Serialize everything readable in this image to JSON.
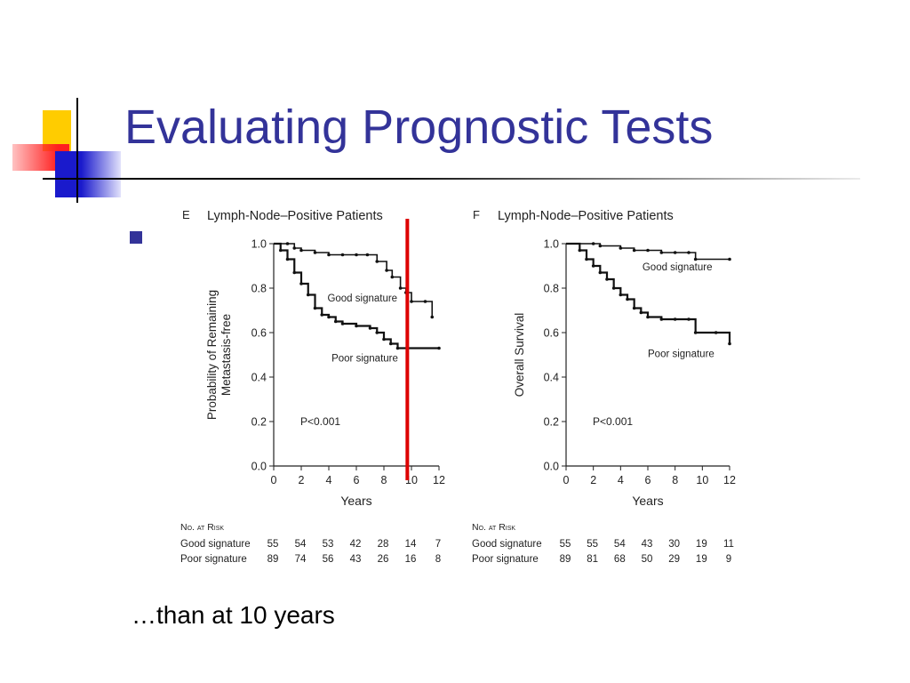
{
  "slide": {
    "title": "Evaluating Prognostic Tests",
    "bottom_text": "…than at 10 years"
  },
  "colors": {
    "title": "#333399",
    "bullet": "#333399",
    "marker_line": "#dd0000"
  },
  "chart_data": [
    {
      "type": "line",
      "panel_letter": "E",
      "title": "Lymph-Node–Positive Patients",
      "xlabel": "Years",
      "ylabel": "Probability of Remaining Metastasis-free",
      "xlim": [
        0,
        12
      ],
      "ylim": [
        0,
        1
      ],
      "xticks": [
        "0",
        "2",
        "4",
        "6",
        "8",
        "10",
        "12"
      ],
      "yticks": [
        "0.0",
        "0.2",
        "0.4",
        "0.6",
        "0.8",
        "1.0"
      ],
      "annotation": "P<0.001",
      "reference_line_x": 9.7,
      "series": [
        {
          "name": "Good signature",
          "x": [
            0,
            1,
            1.5,
            2,
            3,
            4,
            5,
            6,
            6.8,
            7.5,
            8.2,
            8.6,
            9.2,
            9.6,
            10,
            11,
            11.5
          ],
          "y": [
            1.0,
            1.0,
            0.98,
            0.97,
            0.96,
            0.95,
            0.95,
            0.95,
            0.95,
            0.92,
            0.88,
            0.85,
            0.8,
            0.78,
            0.74,
            0.74,
            0.67
          ]
        },
        {
          "name": "Poor signature",
          "x": [
            0,
            0.5,
            1,
            1.5,
            2,
            2.5,
            3,
            3.5,
            4,
            4.5,
            5,
            6,
            7,
            7.5,
            8,
            8.5,
            9,
            12
          ],
          "y": [
            1.0,
            0.97,
            0.93,
            0.87,
            0.82,
            0.77,
            0.71,
            0.68,
            0.67,
            0.65,
            0.64,
            0.63,
            0.62,
            0.6,
            0.57,
            0.55,
            0.53,
            0.53
          ]
        }
      ],
      "at_risk": {
        "header": "No. at Risk",
        "rows": [
          {
            "label": "Good signature",
            "values": [
              "55",
              "54",
              "53",
              "42",
              "28",
              "14",
              "7"
            ]
          },
          {
            "label": "Poor signature",
            "values": [
              "89",
              "74",
              "56",
              "43",
              "26",
              "16",
              "8"
            ]
          }
        ]
      }
    },
    {
      "type": "line",
      "panel_letter": "F",
      "title": "Lymph-Node–Positive Patients",
      "xlabel": "Years",
      "ylabel": "Overall Survival",
      "xlim": [
        0,
        12
      ],
      "ylim": [
        0,
        1
      ],
      "xticks": [
        "0",
        "2",
        "4",
        "6",
        "8",
        "10",
        "12"
      ],
      "yticks": [
        "0.0",
        "0.2",
        "0.4",
        "0.6",
        "0.8",
        "1.0"
      ],
      "annotation": "P<0.001",
      "series": [
        {
          "name": "Good signature",
          "x": [
            0,
            2,
            2.5,
            4,
            5,
            6,
            7,
            8,
            9,
            9.5,
            12
          ],
          "y": [
            1.0,
            1.0,
            0.99,
            0.98,
            0.97,
            0.97,
            0.96,
            0.96,
            0.96,
            0.93,
            0.93
          ]
        },
        {
          "name": "Poor signature",
          "x": [
            0,
            1,
            1.5,
            2,
            2.5,
            3,
            3.5,
            4,
            4.5,
            5,
            5.5,
            6,
            7,
            8,
            9,
            9.5,
            11,
            12
          ],
          "y": [
            1.0,
            0.97,
            0.93,
            0.9,
            0.87,
            0.84,
            0.8,
            0.77,
            0.75,
            0.71,
            0.69,
            0.67,
            0.66,
            0.66,
            0.66,
            0.6,
            0.6,
            0.55
          ]
        }
      ],
      "at_risk": {
        "header": "No. at Risk",
        "rows": [
          {
            "label": "Good signature",
            "values": [
              "55",
              "55",
              "54",
              "43",
              "30",
              "19",
              "11"
            ]
          },
          {
            "label": "Poor signature",
            "values": [
              "89",
              "81",
              "68",
              "50",
              "29",
              "19",
              "9"
            ]
          }
        ]
      }
    }
  ]
}
